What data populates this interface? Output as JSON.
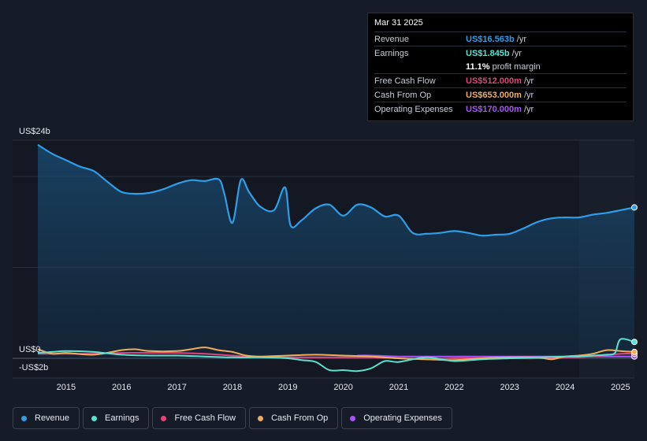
{
  "tooltip": {
    "date": "Mar 31 2025",
    "rows": [
      {
        "label": "Revenue",
        "value": "US$16.563b",
        "unit": "/yr",
        "color": "#2f9ee8"
      },
      {
        "label": "Earnings",
        "value": "US$1.845b",
        "unit": "/yr",
        "color": "#5ce1d0"
      },
      {
        "label": "",
        "value": "11.1%",
        "unit": "profit margin",
        "color": "#ffffff"
      },
      {
        "label": "Free Cash Flow",
        "value": "US$512.000m",
        "unit": "/yr",
        "color": "#e0457b"
      },
      {
        "label": "Cash From Op",
        "value": "US$653.000m",
        "unit": "/yr",
        "color": "#f0ae5c"
      },
      {
        "label": "Operating Expenses",
        "value": "US$170.000m",
        "unit": "/yr",
        "color": "#a855f7"
      }
    ]
  },
  "legend": [
    {
      "label": "Revenue",
      "color": "#2f9ee8"
    },
    {
      "label": "Earnings",
      "color": "#5ce1d0"
    },
    {
      "label": "Free Cash Flow",
      "color": "#e0457b"
    },
    {
      "label": "Cash From Op",
      "color": "#f0ae5c"
    },
    {
      "label": "Operating Expenses",
      "color": "#a855f7"
    }
  ],
  "chart_data": {
    "type": "line",
    "title": "",
    "y_top_label": "US$24b",
    "y_zero_label": "US$0",
    "y_neg_label": "-US$2b",
    "ylim": [
      -2,
      24
    ],
    "xlim": [
      2014.49,
      2025.25
    ],
    "x_ticks": [
      "2015",
      "2016",
      "2017",
      "2018",
      "2019",
      "2020",
      "2021",
      "2022",
      "2023",
      "2024",
      "2025"
    ],
    "forecast_start": 2024.25,
    "series": [
      {
        "name": "Revenue",
        "color": "#2f9ee8",
        "x": [
          2014.49,
          2014.75,
          2015.0,
          2015.25,
          2015.5,
          2015.75,
          2016.0,
          2016.25,
          2016.5,
          2016.75,
          2017.0,
          2017.25,
          2017.5,
          2017.75,
          2017.85,
          2018.0,
          2018.15,
          2018.3,
          2018.5,
          2018.75,
          2018.95,
          2019.05,
          2019.25,
          2019.5,
          2019.75,
          2020.0,
          2020.25,
          2020.5,
          2020.75,
          2021.0,
          2021.25,
          2021.5,
          2021.75,
          2022.0,
          2022.25,
          2022.5,
          2022.75,
          2023.0,
          2023.25,
          2023.5,
          2023.75,
          2024.0,
          2024.25,
          2024.5,
          2024.75,
          2025.0,
          2025.25
        ],
        "values": [
          23.5,
          22.5,
          21.8,
          21.1,
          20.6,
          19.4,
          18.3,
          18.1,
          18.2,
          18.6,
          19.2,
          19.6,
          19.5,
          19.7,
          18.2,
          14.9,
          19.6,
          18.3,
          16.7,
          16.3,
          18.8,
          14.6,
          15.2,
          16.5,
          16.9,
          15.7,
          16.9,
          16.6,
          15.6,
          15.7,
          13.8,
          13.7,
          13.8,
          14.0,
          13.8,
          13.5,
          13.6,
          13.7,
          14.3,
          15.0,
          15.4,
          15.5,
          15.5,
          15.8,
          16.0,
          16.3,
          16.6
        ]
      },
      {
        "name": "Earnings",
        "color": "#5ce1d0",
        "x": [
          2014.49,
          2014.75,
          2015.0,
          2015.5,
          2016.0,
          2016.5,
          2017.0,
          2017.5,
          2018.0,
          2018.5,
          2019.0,
          2019.25,
          2019.5,
          2019.75,
          2020.0,
          2020.25,
          2020.5,
          2020.75,
          2021.0,
          2021.5,
          2022.0,
          2022.5,
          2023.0,
          2023.5,
          2024.0,
          2024.25,
          2024.5,
          2024.75,
          2024.9,
          2025.0,
          2025.25
        ],
        "values": [
          0.6,
          0.7,
          0.8,
          0.7,
          0.4,
          0.3,
          0.3,
          0.2,
          0.1,
          0.1,
          0.0,
          -0.2,
          -0.4,
          -1.3,
          -1.3,
          -1.4,
          -1.1,
          -0.3,
          -0.4,
          0.1,
          -0.3,
          -0.1,
          0.0,
          0.1,
          0.2,
          0.2,
          0.3,
          0.4,
          0.6,
          2.1,
          1.8
        ]
      },
      {
        "name": "Free Cash Flow",
        "color": "#e0457b",
        "x": [
          2014.49,
          2015.0,
          2015.5,
          2016.0,
          2016.5,
          2017.0,
          2017.5,
          2018.0,
          2018.5,
          2019.0,
          2019.5,
          2020.0,
          2020.5,
          2021.0,
          2021.5,
          2022.0,
          2022.5,
          2023.0,
          2023.5,
          2024.0,
          2024.5,
          2025.0,
          2025.25
        ],
        "values": [
          0.5,
          0.5,
          0.5,
          0.6,
          0.6,
          0.6,
          0.5,
          0.3,
          0.1,
          0.1,
          0.1,
          0.1,
          0.1,
          0.0,
          -0.1,
          0.0,
          0.0,
          0.0,
          0.0,
          0.1,
          0.2,
          0.5,
          0.5
        ]
      },
      {
        "name": "Cash From Op",
        "color": "#f0ae5c",
        "x": [
          2014.49,
          2014.75,
          2015.0,
          2015.5,
          2016.0,
          2016.25,
          2016.5,
          2017.0,
          2017.25,
          2017.5,
          2017.75,
          2018.0,
          2018.25,
          2018.5,
          2019.0,
          2019.5,
          2020.0,
          2020.5,
          2021.0,
          2021.5,
          2022.0,
          2022.5,
          2023.0,
          2023.5,
          2023.75,
          2024.0,
          2024.25,
          2024.5,
          2024.75,
          2025.0,
          2025.25
        ],
        "values": [
          1.0,
          0.5,
          0.6,
          0.4,
          0.9,
          1.0,
          0.8,
          0.8,
          1.0,
          1.2,
          0.9,
          0.7,
          0.3,
          0.2,
          0.3,
          0.4,
          0.3,
          0.2,
          0.0,
          -0.1,
          -0.2,
          0.0,
          0.1,
          0.1,
          -0.1,
          0.2,
          0.3,
          0.5,
          0.9,
          0.8,
          0.7
        ]
      },
      {
        "name": "Operating Expenses",
        "color": "#a855f7",
        "x": [
          2020.25,
          2020.5,
          2021.0,
          2021.5,
          2022.0,
          2022.5,
          2023.0,
          2023.5,
          2024.0,
          2024.5,
          2025.0,
          2025.25
        ],
        "values": [
          0.3,
          0.3,
          0.2,
          0.2,
          0.2,
          0.2,
          0.2,
          0.2,
          0.2,
          0.2,
          0.2,
          0.2
        ]
      }
    ]
  }
}
